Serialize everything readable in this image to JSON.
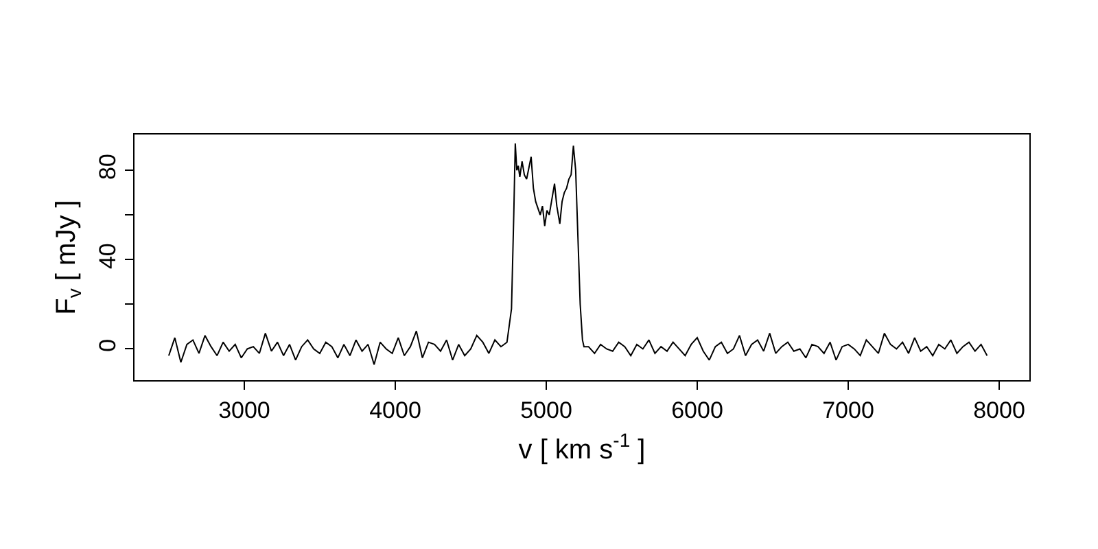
{
  "chart_data": {
    "type": "line",
    "xlabel": "v [ km s$^{-1}$ ]",
    "ylabel": "F$_{v}$ [ mJy ]",
    "x": [
      2500,
      2540,
      2580,
      2620,
      2660,
      2700,
      2740,
      2780,
      2820,
      2860,
      2900,
      2940,
      2980,
      3020,
      3060,
      3100,
      3140,
      3180,
      3220,
      3260,
      3300,
      3340,
      3380,
      3420,
      3460,
      3500,
      3540,
      3580,
      3620,
      3660,
      3700,
      3740,
      3780,
      3820,
      3860,
      3900,
      3940,
      3980,
      4020,
      4060,
      4100,
      4140,
      4180,
      4220,
      4260,
      4300,
      4340,
      4380,
      4420,
      4460,
      4500,
      4540,
      4580,
      4620,
      4660,
      4700,
      4740,
      4770,
      4785,
      4795,
      4805,
      4815,
      4825,
      4840,
      4855,
      4870,
      4885,
      4900,
      4915,
      4930,
      4945,
      4960,
      4975,
      4990,
      5005,
      5020,
      5040,
      5055,
      5070,
      5090,
      5105,
      5120,
      5135,
      5150,
      5165,
      5180,
      5195,
      5210,
      5225,
      5240,
      5250,
      5280,
      5320,
      5360,
      5400,
      5440,
      5480,
      5520,
      5560,
      5600,
      5640,
      5680,
      5720,
      5760,
      5800,
      5840,
      5880,
      5920,
      5960,
      6000,
      6040,
      6080,
      6120,
      6160,
      6200,
      6240,
      6280,
      6320,
      6360,
      6400,
      6440,
      6480,
      6520,
      6560,
      6600,
      6640,
      6680,
      6720,
      6760,
      6800,
      6840,
      6880,
      6920,
      6960,
      7000,
      7040,
      7080,
      7120,
      7160,
      7200,
      7240,
      7280,
      7320,
      7360,
      7400,
      7440,
      7480,
      7520,
      7560,
      7600,
      7640,
      7680,
      7720,
      7760,
      7800,
      7840,
      7880,
      7920
    ],
    "series": [
      {
        "color": "#000000",
        "values": [
          -3,
          5,
          -6,
          2,
          4,
          -2,
          6,
          1,
          -3,
          3,
          -1,
          2,
          -4,
          0,
          1,
          -2,
          7,
          -1,
          3,
          -3,
          2,
          -5,
          1,
          4,
          0,
          -2,
          3,
          1,
          -4,
          2,
          -3,
          4,
          -1,
          2,
          -7,
          3,
          0,
          -2,
          5,
          -3,
          1,
          8,
          -4,
          3,
          2,
          -1,
          4,
          -5,
          2,
          -3,
          0,
          6,
          3,
          -2,
          4,
          1,
          3,
          18,
          60,
          92,
          80,
          82,
          77,
          84,
          78,
          76,
          81,
          86,
          72,
          66,
          63,
          60,
          64,
          55,
          62,
          60,
          68,
          74,
          64,
          56,
          66,
          70,
          72,
          76,
          78,
          91,
          80,
          50,
          20,
          4,
          1,
          1,
          -2,
          2,
          0,
          -1,
          3,
          1,
          -3,
          2,
          0,
          4,
          -2,
          1,
          -1,
          3,
          0,
          -3,
          2,
          5,
          -1,
          -5,
          1,
          3,
          -2,
          0,
          6,
          -3,
          2,
          4,
          -1,
          7,
          -2,
          1,
          3,
          -1,
          0,
          -4,
          2,
          1,
          -2,
          3,
          -5,
          1,
          2,
          0,
          -3,
          4,
          1,
          -2,
          7,
          2,
          0,
          3,
          -2,
          5,
          -1,
          1,
          -3,
          2,
          0,
          4,
          -2,
          1,
          3,
          -1,
          2,
          -3
        ]
      }
    ],
    "xlim": [
      2273,
      8200
    ],
    "ylim": [
      -14,
      96
    ],
    "xticks": [
      3000,
      4000,
      5000,
      6000,
      7000,
      8000
    ],
    "yticks": [
      0,
      {
        "value": 20,
        "label": null
      },
      {
        "value": 40,
        "label": "40"
      },
      {
        "value": 60,
        "label": null
      },
      {
        "value": 80,
        "label": "80"
      }
    ],
    "marker": "none",
    "line_style": "solid"
  }
}
